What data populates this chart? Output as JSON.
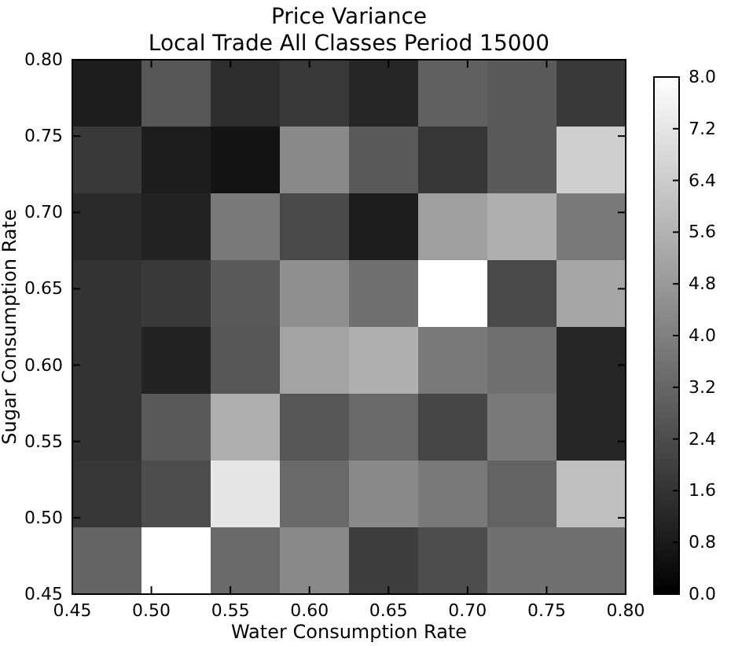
{
  "chart_data": {
    "type": "heatmap",
    "title": "Price Variance",
    "subtitle": "Local Trade All Classes Period 15000",
    "xlabel": "Water Consumption Rate",
    "ylabel": "Sugar Consumption Rate",
    "xlim": [
      0.45,
      0.8
    ],
    "xticks": [
      {
        "value": 0.45,
        "label": "0.45"
      },
      {
        "value": 0.5,
        "label": "0.50"
      },
      {
        "value": 0.55,
        "label": "0.55"
      },
      {
        "value": 0.6,
        "label": "0.60"
      },
      {
        "value": 0.65,
        "label": "0.65"
      },
      {
        "value": 0.7,
        "label": "0.70"
      },
      {
        "value": 0.75,
        "label": "0.75"
      },
      {
        "value": 0.8,
        "label": "0.80"
      }
    ],
    "ylim": [
      0.45,
      0.8
    ],
    "yticks": [
      {
        "value": 0.45,
        "label": "0.45"
      },
      {
        "value": 0.5,
        "label": "0.50"
      },
      {
        "value": 0.55,
        "label": "0.55"
      },
      {
        "value": 0.6,
        "label": "0.60"
      },
      {
        "value": 0.65,
        "label": "0.65"
      },
      {
        "value": 0.7,
        "label": "0.70"
      },
      {
        "value": 0.75,
        "label": "0.75"
      },
      {
        "value": 0.8,
        "label": "0.80"
      }
    ],
    "cells": [
      [
        0.9,
        2.7,
        1.4,
        1.8,
        1.2,
        3.0,
        2.8,
        1.8
      ],
      [
        1.8,
        0.9,
        0.6,
        4.3,
        2.8,
        1.7,
        2.8,
        6.5
      ],
      [
        1.3,
        1.1,
        3.8,
        2.3,
        0.9,
        5.0,
        5.5,
        3.8
      ],
      [
        1.6,
        1.8,
        2.8,
        4.5,
        3.5,
        8.0,
        2.3,
        5.2
      ],
      [
        1.6,
        1.1,
        2.7,
        5.1,
        5.5,
        3.8,
        3.5,
        1.2
      ],
      [
        1.6,
        2.8,
        5.5,
        2.7,
        3.3,
        2.2,
        3.8,
        1.2
      ],
      [
        1.7,
        2.4,
        7.2,
        3.3,
        4.3,
        3.8,
        3.1,
        6.0
      ],
      [
        3.1,
        8.0,
        3.3,
        4.3,
        1.9,
        2.4,
        3.5,
        3.5
      ]
    ],
    "clim": [
      0,
      8
    ],
    "cticks": [
      {
        "value": 0,
        "label": "0.0"
      },
      {
        "value": 0.8,
        "label": "0.8"
      },
      {
        "value": 1.6,
        "label": "1.6"
      },
      {
        "value": 2.4,
        "label": "2.4"
      },
      {
        "value": 3.2,
        "label": "3.2"
      },
      {
        "value": 4.0,
        "label": "4.0"
      },
      {
        "value": 4.8,
        "label": "4.8"
      },
      {
        "value": 5.6,
        "label": "5.6"
      },
      {
        "value": 6.4,
        "label": "6.4"
      },
      {
        "value": 7.2,
        "label": "7.2"
      },
      {
        "value": 8.0,
        "label": "8.0"
      }
    ]
  }
}
